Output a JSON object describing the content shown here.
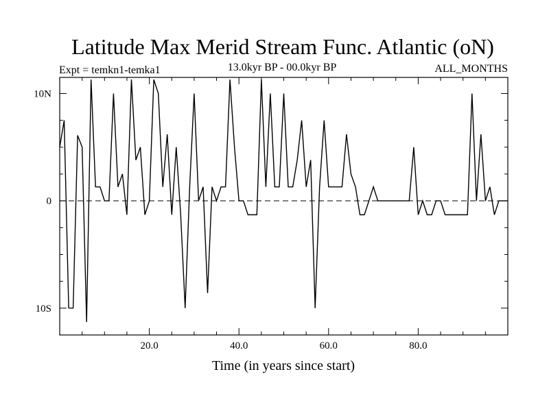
{
  "chart_data": {
    "type": "line",
    "title": "Latitude Max Merid Stream Func. Atlantic (oN)",
    "subtitle_left": "Expt = temkn1-temka1",
    "subtitle_center": "13.0kyr BP - 00.0kyr BP",
    "subtitle_right": "ALL_MONTHS",
    "xlabel": "Time (in years since start)",
    "ylabel": "",
    "xlim": [
      0,
      100
    ],
    "ylim": [
      -12.5,
      11.5
    ],
    "x_ticks": [
      {
        "value": 20,
        "label": "20.0"
      },
      {
        "value": 40,
        "label": "40.0"
      },
      {
        "value": 60,
        "label": "60.0"
      },
      {
        "value": 80,
        "label": "80.0"
      }
    ],
    "y_ticks": [
      {
        "value": 10,
        "label": "10N"
      },
      {
        "value": 0,
        "label": "0"
      },
      {
        "value": -10,
        "label": "10S"
      }
    ],
    "zero_line": "dashed",
    "grid": false,
    "series": [
      {
        "color": "#000000",
        "x": [
          0,
          1,
          2,
          3,
          4,
          5,
          6,
          7,
          8,
          9,
          10,
          11,
          12,
          13,
          14,
          15,
          16,
          17,
          18,
          19,
          20,
          21,
          22,
          23,
          24,
          25,
          26,
          27,
          28,
          29,
          30,
          31,
          32,
          33,
          34,
          35,
          36,
          37,
          38,
          39,
          40,
          41,
          42,
          43,
          44,
          45,
          46,
          47,
          48,
          49,
          50,
          51,
          52,
          53,
          54,
          55,
          56,
          57,
          58,
          59,
          60,
          61,
          62,
          63,
          64,
          65,
          66,
          67,
          68,
          69,
          70,
          71,
          72,
          73,
          74,
          75,
          76,
          77,
          78,
          79,
          80,
          81,
          82,
          83,
          84,
          85,
          86,
          87,
          88,
          89,
          90,
          91,
          92,
          93,
          94,
          95,
          96,
          97,
          98,
          99,
          100
        ],
        "y": [
          5,
          7.5,
          -9.99,
          -10,
          6.1,
          5,
          -11.3,
          11.3,
          1.3,
          1.3,
          0,
          0,
          10,
          1.3,
          2.5,
          -1.3,
          11.3,
          3.8,
          5,
          -1.3,
          0,
          11.3,
          10,
          1.3,
          6.2,
          -1.3,
          5,
          -1.3,
          -10,
          1.3,
          10,
          0,
          1.3,
          -8.6,
          1.3,
          0,
          1.3,
          1.3,
          11.3,
          5,
          0,
          0,
          -1.3,
          -1.3,
          -1.3,
          11.3,
          1.3,
          10,
          1.3,
          1.3,
          10,
          1.3,
          1.3,
          3.8,
          7.5,
          1.3,
          3.8,
          -10,
          1.3,
          7.5,
          1.3,
          1.3,
          1.3,
          1.3,
          6.2,
          2.5,
          1.3,
          -1.3,
          -1.3,
          0,
          1.3,
          0,
          0,
          0,
          0,
          0,
          0,
          0,
          0,
          5,
          -1.3,
          0,
          -1.3,
          -1.3,
          0,
          0,
          -1.3,
          -1.3,
          -1.3,
          -1.3,
          -1.3,
          -1.3,
          10,
          0,
          6.2,
          0,
          1.3,
          -1.3,
          0,
          0,
          0
        ]
      }
    ]
  }
}
